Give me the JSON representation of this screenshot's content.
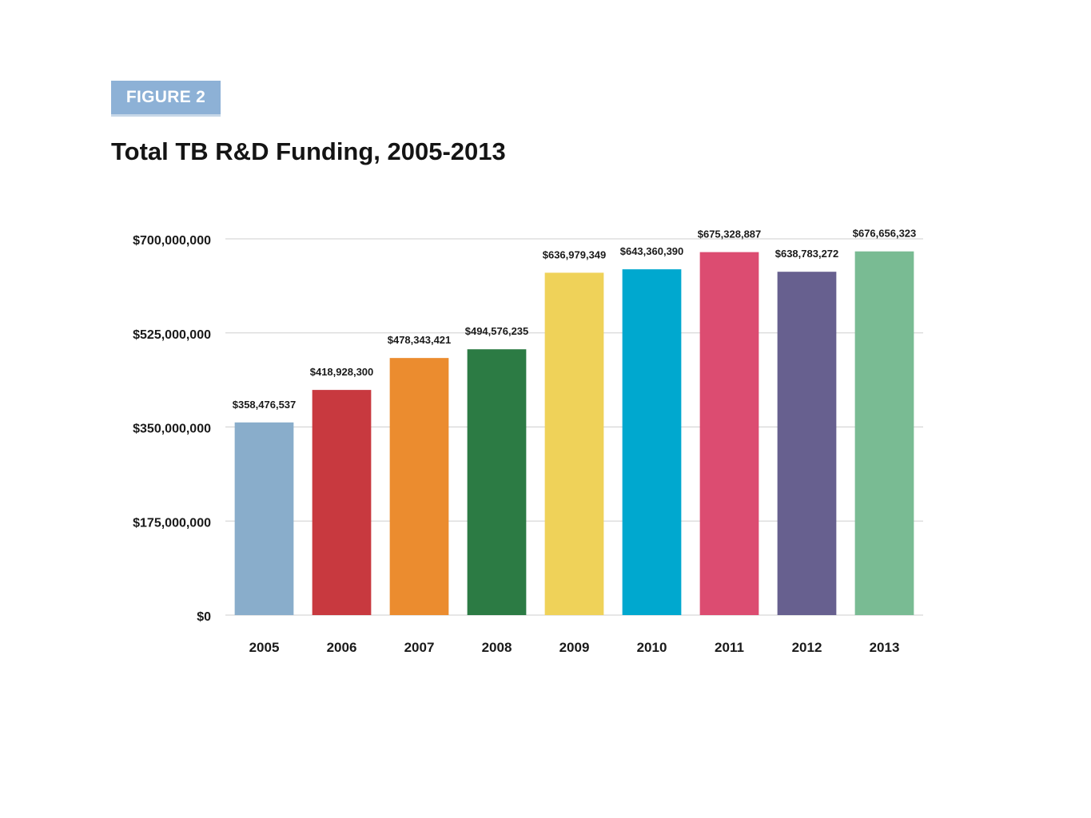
{
  "figure_label": "FIGURE 2",
  "chart_data": {
    "type": "bar",
    "title": "Total TB R&D Funding, 2005-2013",
    "xlabel": "",
    "ylabel": "",
    "ylim": [
      0,
      700000000
    ],
    "yticks": [
      0,
      175000000,
      350000000,
      525000000,
      700000000
    ],
    "ytick_labels": [
      "$0",
      "$175,000,000",
      "$350,000,000",
      "$525,000,000",
      "$700,000,000"
    ],
    "grid": true,
    "legend": "none",
    "categories": [
      "2005",
      "2006",
      "2007",
      "2008",
      "2009",
      "2010",
      "2011",
      "2012",
      "2013"
    ],
    "values": [
      358476537,
      418928300,
      478343421,
      494576235,
      636979349,
      643360390,
      675328887,
      638783272,
      676656323
    ],
    "data_labels": [
      "$358,476,537",
      "$418,928,300",
      "$478,343,421",
      "$494,576,235",
      "$636,979,349",
      "$643,360,390",
      "$675,328,887",
      "$638,783,272",
      "$676,656,323"
    ],
    "colors": [
      "#89adcb",
      "#c8393f",
      "#eb8c2f",
      "#2c7b44",
      "#efd259",
      "#00a8cf",
      "#dc4c71",
      "#67608f",
      "#79bb93"
    ]
  }
}
